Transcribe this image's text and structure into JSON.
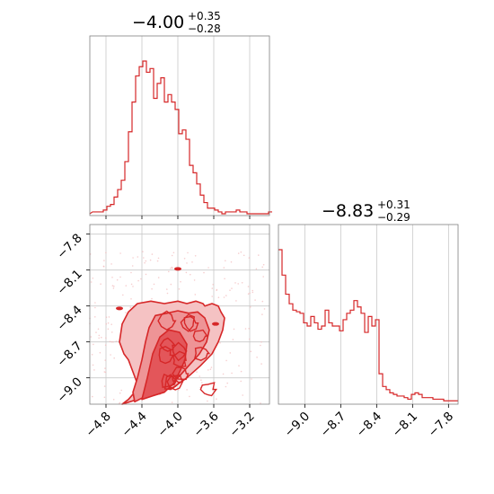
{
  "chart_data": [
    {
      "type": "histogram",
      "panel": "top-left marginal",
      "title": {
        "main": "−4.00",
        "plus": "+0.35",
        "minus": "−0.28"
      },
      "xlim": [
        -4.98,
        -2.98
      ],
      "grid": true,
      "color": "#d62728",
      "bin_edges": [
        -4.95,
        -4.91,
        -4.87,
        -4.83,
        -4.79,
        -4.75,
        -4.71,
        -4.67,
        -4.63,
        -4.59,
        -4.55,
        -4.51,
        -4.47,
        -4.43,
        -4.39,
        -4.35,
        -4.31,
        -4.27,
        -4.23,
        -4.19,
        -4.15,
        -4.11,
        -4.07,
        -4.03,
        -3.99,
        -3.95,
        -3.91,
        -3.87,
        -3.83,
        -3.79,
        -3.75,
        -3.71,
        -3.67,
        -3.63,
        -3.59,
        -3.55,
        -3.51,
        -3.47,
        -3.43,
        -3.39,
        -3.35,
        -3.31,
        -3.27,
        -3.23,
        -3.19,
        -3.15,
        -3.11,
        -3.07,
        -3.03,
        -2.99
      ],
      "counts": [
        1,
        1,
        1,
        2,
        4,
        5,
        9,
        13,
        18,
        28,
        44,
        60,
        74,
        79,
        82,
        76,
        78,
        62,
        70,
        73,
        60,
        64,
        60,
        56,
        43,
        45,
        40,
        26,
        22,
        16,
        10,
        6,
        3,
        3,
        2,
        1,
        0,
        1,
        1,
        1,
        2,
        1,
        1,
        0,
        0,
        0,
        0,
        0,
        0,
        1
      ]
    },
    {
      "type": "contour",
      "panel": "bottom-left 2D",
      "xlim": [
        -4.98,
        -2.98
      ],
      "ylim": [
        -9.22,
        -7.72
      ],
      "x_ticks": [
        "−4.8",
        "−4.4",
        "−4.0",
        "−3.6",
        "−3.2"
      ],
      "x_tick_values": [
        -4.8,
        -4.4,
        -4.0,
        -3.6,
        -3.2
      ],
      "y_ticks": [
        "−7.8",
        "−8.1",
        "−8.4",
        "−8.7",
        "−9.0"
      ],
      "y_tick_values": [
        -7.8,
        -8.1,
        -8.4,
        -8.7,
        -9.0
      ],
      "grid": true,
      "color": "#d62728",
      "contour_levels": [
        {
          "label": "outer",
          "fill": "#f5c2c3",
          "x": [
            -4.62,
            -4.45,
            -4.3,
            -4.15,
            -4.05,
            -3.9,
            -3.75,
            -3.62,
            -3.55,
            -3.5,
            -3.48,
            -3.52,
            -3.55,
            -3.62,
            -3.7,
            -3.72,
            -3.8,
            -3.9,
            -4.0,
            -4.15,
            -4.3,
            -4.45,
            -4.55,
            -4.62,
            -4.65,
            -4.6,
            -4.55,
            -4.5,
            -4.45,
            -4.48,
            -4.55,
            -4.62
          ],
          "y": [
            -9.22,
            -9.18,
            -9.12,
            -9.1,
            -9.08,
            -9.0,
            -8.9,
            -8.8,
            -8.7,
            -8.6,
            -8.5,
            -8.45,
            -8.4,
            -8.38,
            -8.4,
            -8.38,
            -8.36,
            -8.38,
            -8.36,
            -8.38,
            -8.36,
            -8.38,
            -8.45,
            -8.55,
            -8.7,
            -8.8,
            -8.85,
            -8.95,
            -9.05,
            -9.12,
            -9.18,
            -9.22
          ]
        },
        {
          "label": "middle",
          "fill": "#ee9496",
          "x": [
            -4.48,
            -4.35,
            -4.22,
            -4.1,
            -4.0,
            -3.88,
            -3.76,
            -3.68,
            -3.65,
            -3.7,
            -3.78,
            -3.88,
            -4.0,
            -4.12,
            -4.25,
            -4.32,
            -4.36,
            -4.4,
            -4.45,
            -4.5,
            -4.48
          ],
          "y": [
            -9.2,
            -9.15,
            -9.1,
            -9.06,
            -9.0,
            -8.9,
            -8.8,
            -8.7,
            -8.6,
            -8.5,
            -8.45,
            -8.46,
            -8.44,
            -8.46,
            -8.48,
            -8.58,
            -8.7,
            -8.85,
            -9.0,
            -9.12,
            -9.2
          ]
        },
        {
          "label": "inner",
          "fill": "#e3565a",
          "x": [
            -4.4,
            -4.28,
            -4.15,
            -4.05,
            -3.98,
            -3.92,
            -3.9,
            -3.98,
            -4.1,
            -4.2,
            -4.28,
            -4.34,
            -4.4
          ],
          "y": [
            -9.18,
            -9.15,
            -9.12,
            -9.05,
            -8.95,
            -8.85,
            -8.72,
            -8.62,
            -8.6,
            -8.66,
            -8.8,
            -9.0,
            -9.18
          ]
        }
      ],
      "isolated_peaks": [
        {
          "x": -4.0,
          "y": -8.09
        },
        {
          "x": -4.65,
          "y": -8.42
        },
        {
          "x": -3.58,
          "y": -8.55
        }
      ]
    },
    {
      "type": "histogram",
      "panel": "bottom-right marginal",
      "title": {
        "main": "−8.83",
        "plus": "+0.31",
        "minus": "−0.29"
      },
      "xlim": [
        -9.22,
        -7.72
      ],
      "x_ticks": [
        "−9.0",
        "−8.7",
        "−8.4",
        "−8.1",
        "−7.8"
      ],
      "x_tick_values": [
        -9.0,
        -8.7,
        -8.4,
        -8.1,
        -7.8
      ],
      "grid": true,
      "color": "#d62728",
      "bin_edges": [
        -9.22,
        -9.19,
        -9.16,
        -9.13,
        -9.1,
        -9.07,
        -9.04,
        -9.01,
        -8.98,
        -8.95,
        -8.92,
        -8.89,
        -8.86,
        -8.83,
        -8.8,
        -8.77,
        -8.74,
        -8.71,
        -8.68,
        -8.65,
        -8.62,
        -8.59,
        -8.56,
        -8.53,
        -8.5,
        -8.47,
        -8.44,
        -8.41,
        -8.38,
        -8.35,
        -8.32,
        -8.29,
        -8.26,
        -8.23,
        -8.2,
        -8.17,
        -8.14,
        -8.11,
        -8.08,
        -8.05,
        -8.02,
        -7.99,
        -7.96,
        -7.93,
        -7.9,
        -7.87,
        -7.84,
        -7.81,
        -7.78,
        -7.75,
        -7.72
      ],
      "counts": [
        96,
        80,
        68,
        62,
        58,
        57,
        56,
        50,
        48,
        54,
        50,
        46,
        48,
        58,
        50,
        48,
        48,
        45,
        52,
        56,
        58,
        64,
        60,
        56,
        44,
        54,
        48,
        52,
        18,
        10,
        8,
        6,
        5,
        4,
        4,
        3,
        2,
        5,
        6,
        5,
        3,
        3,
        3,
        2,
        2,
        2,
        1,
        1,
        1,
        1
      ]
    }
  ]
}
